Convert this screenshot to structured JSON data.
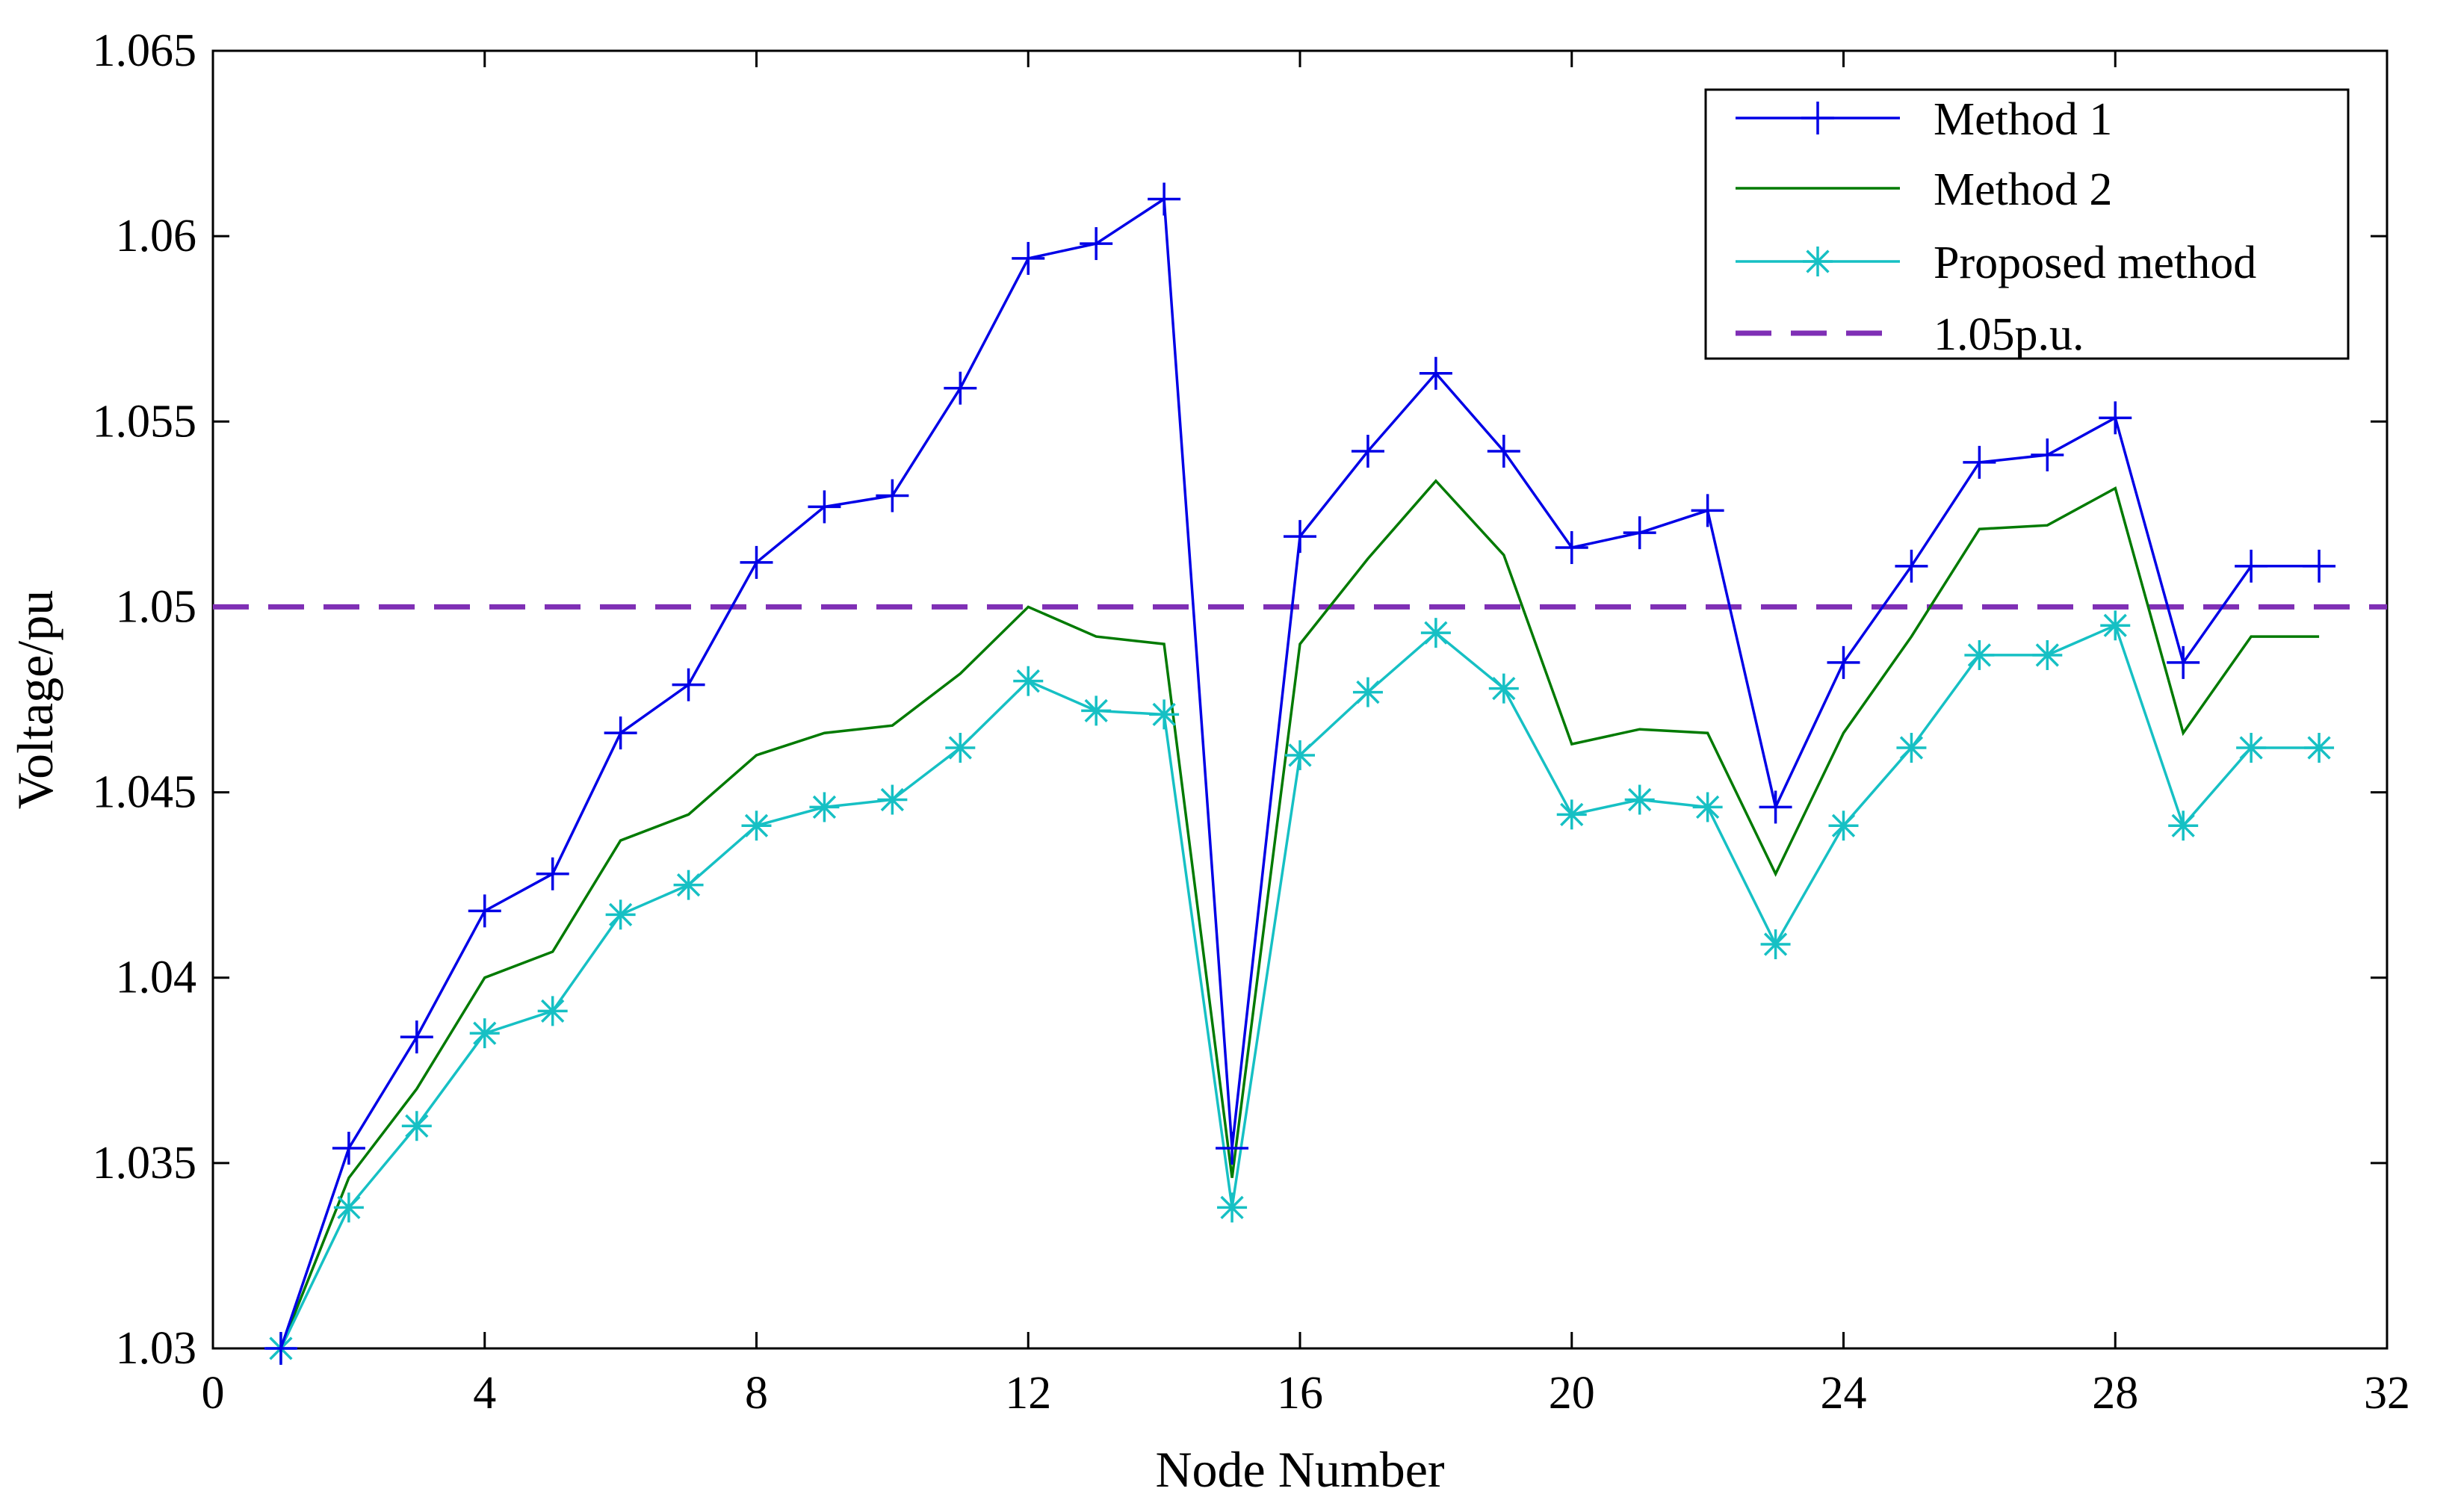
{
  "chart_data": {
    "type": "line",
    "title": "",
    "xlabel": "Node Number",
    "ylabel": "Voltage/pu",
    "xlim": [
      0,
      32
    ],
    "ylim": [
      1.03,
      1.065
    ],
    "xticks": [
      0,
      4,
      8,
      12,
      16,
      20,
      24,
      28,
      32
    ],
    "xtick_labels": [
      "0",
      "4",
      "8",
      "12",
      "16",
      "20",
      "24",
      "28",
      "32"
    ],
    "yticks": [
      1.03,
      1.035,
      1.04,
      1.045,
      1.05,
      1.055,
      1.06,
      1.065
    ],
    "ytick_labels": [
      "1.03",
      "1.035",
      "1.04",
      "1.045",
      "1.05",
      "1.055",
      "1.06",
      "1.065"
    ],
    "grid": false,
    "legend_position": "top-right",
    "x": [
      1,
      2,
      3,
      4,
      5,
      6,
      7,
      8,
      9,
      10,
      11,
      12,
      13,
      14,
      15,
      16,
      17,
      18,
      19,
      20,
      21,
      22,
      23,
      24,
      25,
      26,
      27,
      28,
      29,
      30,
      31
    ],
    "series": [
      {
        "name": "Method 1",
        "color": "#0000e6",
        "marker": "plus",
        "dashed": false,
        "values": [
          1.03,
          1.0354,
          1.0384,
          1.0418,
          1.0428,
          1.0466,
          1.0479,
          1.0512,
          1.0527,
          1.053,
          1.0559,
          1.0594,
          1.0598,
          1.061,
          1.0354,
          1.0519,
          1.0542,
          1.0563,
          1.0542,
          1.0516,
          1.052,
          1.0526,
          1.0446,
          1.0485,
          1.0511,
          1.0539,
          1.0541,
          1.0551,
          1.0485,
          1.0511,
          1.0511
        ]
      },
      {
        "name": "Method 2",
        "color": "#007a00",
        "marker": "none",
        "dashed": false,
        "values": [
          1.03,
          1.0346,
          1.037,
          1.04,
          1.0407,
          1.0437,
          1.0444,
          1.046,
          1.0466,
          1.0468,
          1.0482,
          1.05,
          1.0492,
          1.049,
          1.0346,
          1.049,
          1.0513,
          1.0534,
          1.0514,
          1.0463,
          1.0467,
          1.0466,
          1.0428,
          1.0466,
          1.0492,
          1.0521,
          1.0522,
          1.0532,
          1.0466,
          1.0492,
          1.0492
        ]
      },
      {
        "name": "Proposed method",
        "color": "#16c0c4",
        "marker": "asterisk",
        "dashed": false,
        "values": [
          1.03,
          1.0338,
          1.036,
          1.0385,
          1.0391,
          1.0417,
          1.0425,
          1.0441,
          1.0446,
          1.0448,
          1.0462,
          1.048,
          1.0472,
          1.0471,
          1.0338,
          1.046,
          1.0477,
          1.0493,
          1.0478,
          1.0444,
          1.0448,
          1.0446,
          1.0409,
          1.0441,
          1.0462,
          1.0487,
          1.0487,
          1.0495,
          1.0441,
          1.0462,
          1.0462
        ]
      },
      {
        "name": "1.05p.u.",
        "color": "#7f2fb5",
        "marker": "none",
        "dashed": true,
        "reference_y": 1.05
      }
    ]
  }
}
